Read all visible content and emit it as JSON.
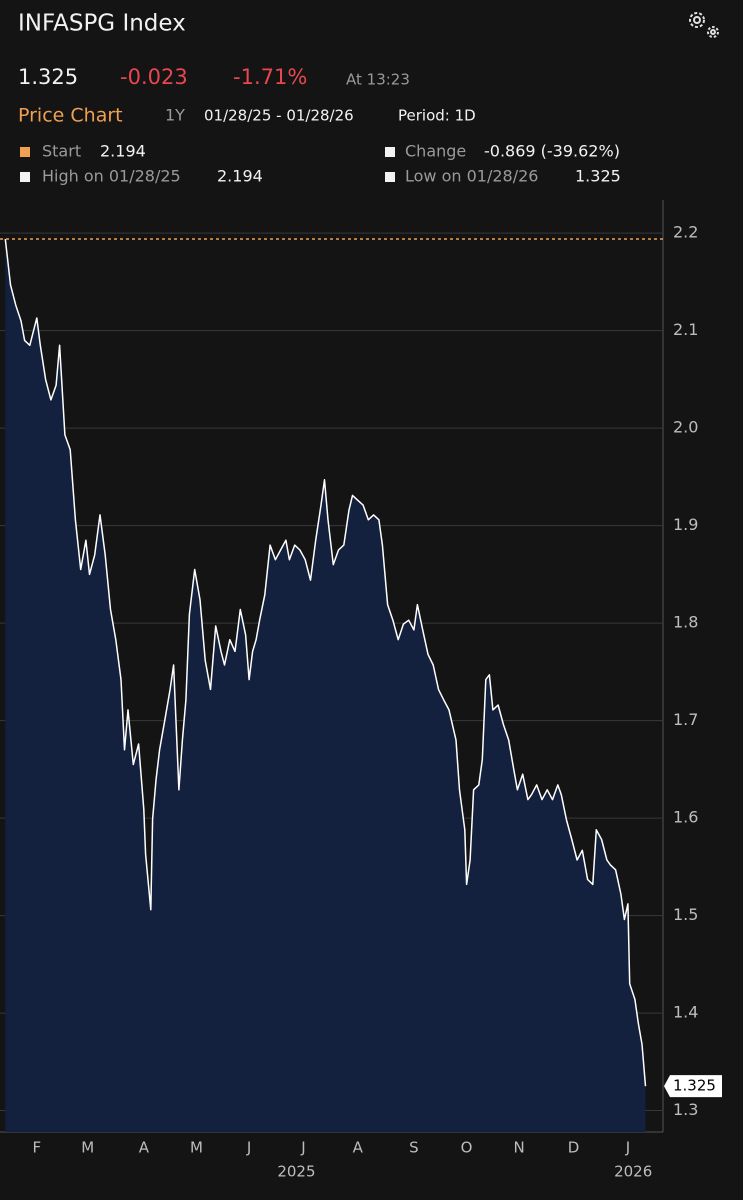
{
  "header": {
    "title": "INFASPG Index",
    "price": "1.325",
    "change": "-0.023",
    "change_pct": "-1.71%",
    "time": "At 13:23",
    "chart_label": "Price Chart",
    "range": "1Y",
    "dates": "01/28/25 - 01/28/26",
    "period": "Period: 1D",
    "legend": {
      "start_label": "Start",
      "start_value": "2.194",
      "change_label": "Change",
      "change_value": "-0.869 (-39.62%)",
      "high_label": "High on 01/28/25",
      "high_value": "2.194",
      "low_label": "Low on 01/28/26",
      "low_value": "1.325"
    }
  },
  "chart_data": {
    "type": "area",
    "line_color": "#ffffff",
    "fill_color": "#13213f",
    "ref_color": "#f0a050",
    "grid": true,
    "x": [
      0,
      3,
      6,
      9,
      11,
      14,
      18,
      20,
      23,
      26,
      29,
      31,
      34,
      37,
      40,
      43,
      46,
      48,
      51,
      54,
      57,
      60,
      63,
      66,
      68,
      70,
      73,
      76,
      79,
      80,
      83,
      84,
      86,
      88,
      91,
      94,
      96,
      99,
      101,
      103,
      105,
      108,
      111,
      114,
      117,
      120,
      123,
      125,
      128,
      131,
      134,
      137,
      139,
      141,
      143,
      145,
      148,
      151,
      154,
      157,
      160,
      162,
      165,
      168,
      171,
      174,
      177,
      180,
      182,
      184,
      187,
      190,
      193,
      196,
      198,
      201,
      204,
      207,
      210,
      213,
      215,
      218,
      221,
      224,
      227,
      230,
      233,
      235,
      238,
      241,
      244,
      247,
      250,
      253,
      257,
      259,
      262,
      263,
      265,
      267,
      270,
      272,
      274,
      276,
      278,
      281,
      284,
      287,
      290,
      292,
      295,
      298,
      300,
      303,
      306,
      309,
      312,
      315,
      317,
      320,
      323,
      326,
      329,
      332,
      335,
      337,
      340,
      343,
      345,
      348,
      351,
      353,
      355,
      356,
      359,
      361,
      363,
      365
    ],
    "values": [
      2.194,
      2.147,
      2.126,
      2.11,
      2.09,
      2.085,
      2.113,
      2.085,
      2.05,
      2.029,
      2.044,
      2.085,
      1.993,
      1.978,
      1.906,
      1.855,
      1.885,
      1.85,
      1.87,
      1.911,
      1.87,
      1.814,
      1.783,
      1.742,
      1.67,
      1.711,
      1.655,
      1.676,
      1.609,
      1.563,
      1.506,
      1.599,
      1.64,
      1.67,
      1.701,
      1.732,
      1.757,
      1.629,
      1.68,
      1.721,
      1.809,
      1.855,
      1.824,
      1.762,
      1.732,
      1.797,
      1.771,
      1.757,
      1.783,
      1.771,
      1.814,
      1.788,
      1.742,
      1.771,
      1.783,
      1.803,
      1.829,
      1.88,
      1.865,
      1.875,
      1.885,
      1.865,
      1.88,
      1.875,
      1.865,
      1.844,
      1.885,
      1.921,
      1.947,
      1.906,
      1.86,
      1.875,
      1.88,
      1.916,
      1.931,
      1.926,
      1.921,
      1.906,
      1.911,
      1.906,
      1.88,
      1.819,
      1.803,
      1.783,
      1.799,
      1.803,
      1.793,
      1.819,
      1.793,
      1.768,
      1.757,
      1.732,
      1.721,
      1.711,
      1.68,
      1.629,
      1.588,
      1.532,
      1.557,
      1.629,
      1.634,
      1.66,
      1.742,
      1.747,
      1.711,
      1.716,
      1.696,
      1.68,
      1.649,
      1.629,
      1.645,
      1.619,
      1.624,
      1.634,
      1.619,
      1.629,
      1.619,
      1.634,
      1.624,
      1.598,
      1.578,
      1.557,
      1.567,
      1.537,
      1.532,
      1.588,
      1.578,
      1.557,
      1.552,
      1.547,
      1.522,
      1.496,
      1.512,
      1.43,
      1.414,
      1.389,
      1.368,
      1.325
    ],
    "xlim": [
      -3,
      375
    ],
    "xticks": [
      {
        "value": 18,
        "label": "F"
      },
      {
        "value": 47,
        "label": "M"
      },
      {
        "value": 79,
        "label": "A"
      },
      {
        "value": 109,
        "label": "M"
      },
      {
        "value": 139,
        "label": "J"
      },
      {
        "value": 170,
        "label": "J"
      },
      {
        "value": 201,
        "label": "A"
      },
      {
        "value": 233,
        "label": "S"
      },
      {
        "value": 263,
        "label": "O"
      },
      {
        "value": 293,
        "label": "N"
      },
      {
        "value": 324,
        "label": "D"
      },
      {
        "value": 355,
        "label": "J"
      }
    ],
    "year_ticks": [
      {
        "value": 166,
        "label": "2025"
      },
      {
        "value": 358,
        "label": "2026"
      }
    ],
    "ylim": [
      1.278,
      2.234
    ],
    "yticks": [
      1.3,
      1.4,
      1.5,
      1.6,
      1.7,
      1.8,
      1.9,
      {
        "value": 2,
        "label": "2.0"
      },
      2.1,
      2.2
    ]
  }
}
